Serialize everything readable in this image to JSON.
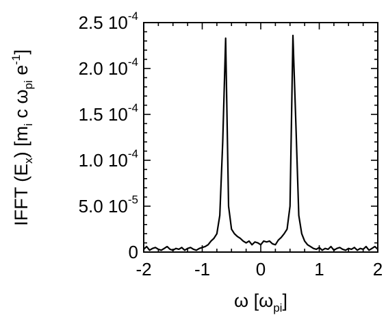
{
  "chart_data": {
    "type": "line",
    "xlabel": {
      "main": "ω [ω",
      "sub": "pi",
      "close": "]"
    },
    "ylabel": {
      "p1": "IFFT (E",
      "s1": "x",
      "p2": ")",
      "p3": " [m",
      "s2": "i",
      "p4": " c ω",
      "s3": "pi",
      "p5": " e",
      "sup": "-1",
      "p6": "]"
    },
    "xlim": [
      -2,
      2
    ],
    "ylim": [
      0,
      0.00025
    ],
    "xticks": [
      -2,
      -1,
      0,
      1,
      2
    ],
    "xtick_labels": [
      "-2",
      "-1",
      "0",
      "1",
      "2"
    ],
    "yticks": [
      0,
      5e-05,
      0.0001,
      0.00015,
      0.0002,
      0.00025
    ],
    "ytick_labels": [
      {
        "mantissa": "0",
        "exp": ""
      },
      {
        "mantissa": "5.0 10",
        "exp": "-5"
      },
      {
        "mantissa": "1.0 10",
        "exp": "-4"
      },
      {
        "mantissa": "1.5 10",
        "exp": "-4"
      },
      {
        "mantissa": "2.0 10",
        "exp": "-4"
      },
      {
        "mantissa": "2.5 10",
        "exp": "-4"
      }
    ],
    "grid": false,
    "series": [
      {
        "x": [
          -2.0,
          -1.95,
          -1.9,
          -1.85,
          -1.8,
          -1.75,
          -1.7,
          -1.65,
          -1.6,
          -1.55,
          -1.5,
          -1.45,
          -1.4,
          -1.35,
          -1.3,
          -1.25,
          -1.2,
          -1.15,
          -1.1,
          -1.05,
          -1.0,
          -0.95,
          -0.9,
          -0.85,
          -0.8,
          -0.75,
          -0.7,
          -0.65,
          -0.6,
          -0.55,
          -0.5,
          -0.45,
          -0.4,
          -0.35,
          -0.3,
          -0.25,
          -0.2,
          -0.15,
          -0.1,
          -0.05,
          0.0,
          0.05,
          0.1,
          0.15,
          0.2,
          0.25,
          0.3,
          0.35,
          0.4,
          0.45,
          0.5,
          0.55,
          0.6,
          0.65,
          0.7,
          0.75,
          0.8,
          0.85,
          0.9,
          0.95,
          1.0,
          1.05,
          1.1,
          1.15,
          1.2,
          1.25,
          1.3,
          1.35,
          1.4,
          1.45,
          1.5,
          1.55,
          1.6,
          1.65,
          1.7,
          1.75,
          1.8,
          1.85,
          1.9,
          1.95,
          2.0
        ],
        "y": [
          3e-06,
          6e-06,
          2e-06,
          4e-06,
          5e-06,
          3e-06,
          2e-06,
          4e-06,
          6e-06,
          3e-06,
          2e-06,
          4e-06,
          3e-06,
          5e-06,
          2e-06,
          4e-06,
          5e-06,
          3e-06,
          2e-06,
          4e-06,
          5e-06,
          6e-06,
          8e-06,
          1.2e-05,
          1.5e-05,
          2e-05,
          4e-05,
          0.00012,
          0.000233,
          5e-05,
          2.5e-05,
          2e-05,
          1.7e-05,
          1.5e-05,
          1.2e-05,
          1e-05,
          1.2e-05,
          8e-06,
          1.1e-05,
          1e-05,
          8e-06,
          1.2e-05,
          1.1e-05,
          1.2e-05,
          9e-06,
          8e-06,
          1.3e-05,
          1.6e-05,
          2e-05,
          2.5e-05,
          5e-05,
          0.000236,
          0.00014,
          4e-05,
          2e-05,
          1.2e-05,
          8e-06,
          6e-06,
          4e-06,
          3e-06,
          5e-06,
          2e-06,
          4e-06,
          3e-06,
          6e-06,
          2e-06,
          4e-06,
          5e-06,
          3e-06,
          2e-06,
          4e-06,
          3e-06,
          5e-06,
          2e-06,
          4e-06,
          3e-06,
          6e-06,
          2e-06,
          4e-06,
          6e-06,
          3e-06
        ]
      }
    ]
  }
}
